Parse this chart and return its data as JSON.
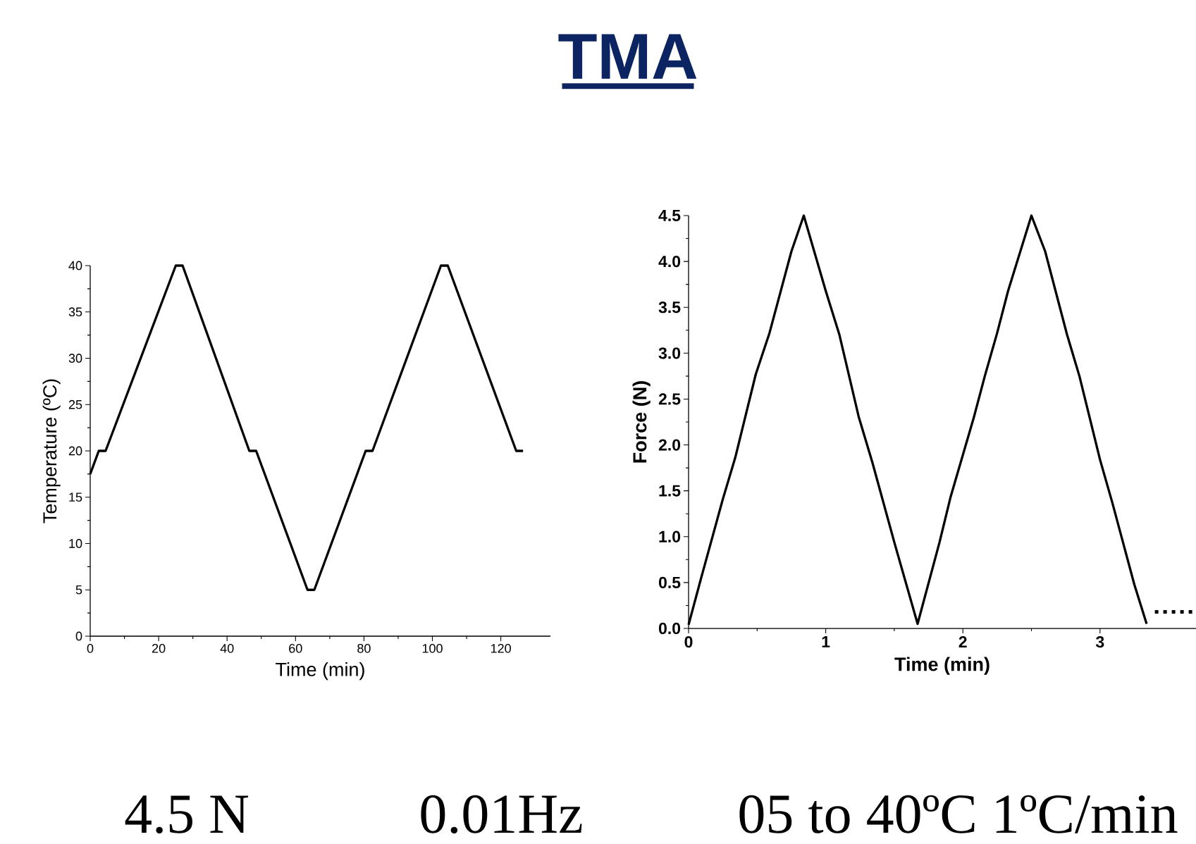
{
  "chart_data": [
    {
      "type": "line",
      "title": "TMA",
      "xlabel": "Time (min)",
      "ylabel": "Temperature (ºC)",
      "xlim": [
        0,
        134.5
      ],
      "ylim": [
        0,
        40
      ],
      "xticks": [
        0,
        20,
        40,
        60,
        80,
        100,
        120
      ],
      "yticks": [
        0,
        5,
        10,
        15,
        20,
        25,
        30,
        35,
        40
      ],
      "series": [
        {
          "color": "#000000",
          "x": [
            0,
            2.5,
            4.5,
            25,
            27,
            46.5,
            48.5,
            63.5,
            65.5,
            80.5,
            82.5,
            102.5,
            104.5,
            124.5,
            126.5
          ],
          "values": [
            17.5,
            20,
            20,
            40,
            40,
            20,
            20,
            5,
            5,
            20,
            20,
            40,
            40,
            20,
            20
          ]
        }
      ]
    },
    {
      "type": "line",
      "xlabel": "Time (min)",
      "ylabel": "Force (N)",
      "xlim": [
        0,
        3.7
      ],
      "ylim": [
        0,
        4.5
      ],
      "xticks": [
        0,
        1,
        2,
        3
      ],
      "yticks": [
        {
          "value": 0,
          "label": "0.0"
        },
        {
          "value": 0.5,
          "label": "0.5"
        },
        {
          "value": 1,
          "label": "1.0"
        },
        {
          "value": 1.5,
          "label": "1.5"
        },
        {
          "value": 2,
          "label": "2.0"
        },
        {
          "value": 2.5,
          "label": "2.5"
        },
        {
          "value": 3,
          "label": "3.0"
        },
        {
          "value": 3.5,
          "label": "3.5"
        },
        {
          "value": 4,
          "label": "4.0"
        },
        {
          "value": 4.5,
          "label": "4.5"
        }
      ],
      "series": [
        {
          "color": "#000000",
          "x": [
            0,
            0.09,
            0.25,
            0.34,
            0.49,
            0.59,
            0.75,
            0.84,
            1.0,
            1.1,
            1.24,
            1.34,
            1.5,
            1.67,
            1.83,
            1.91,
            2.08,
            2.16,
            2.25,
            2.33,
            2.5,
            2.6,
            2.76,
            2.85,
            3.0,
            3.09,
            3.25,
            3.34
          ],
          "values": [
            0.04,
            0.54,
            1.41,
            1.86,
            2.77,
            3.22,
            4.11,
            4.5,
            3.68,
            3.2,
            2.31,
            1.81,
            0.94,
            0.05,
            0.94,
            1.43,
            2.3,
            2.75,
            3.22,
            3.68,
            4.5,
            4.11,
            3.2,
            2.75,
            1.84,
            1.37,
            0.48,
            0.05
          ]
        },
        {
          "color": "#000000",
          "line_style": "dotted",
          "x": [
            3.4,
            3.7
          ],
          "values": [
            0.18,
            0.18
          ]
        }
      ],
      "annotations": [
        "4.5 N",
        "0.01Hz",
        "05 to 40ºC 1ºC/min"
      ]
    }
  ]
}
